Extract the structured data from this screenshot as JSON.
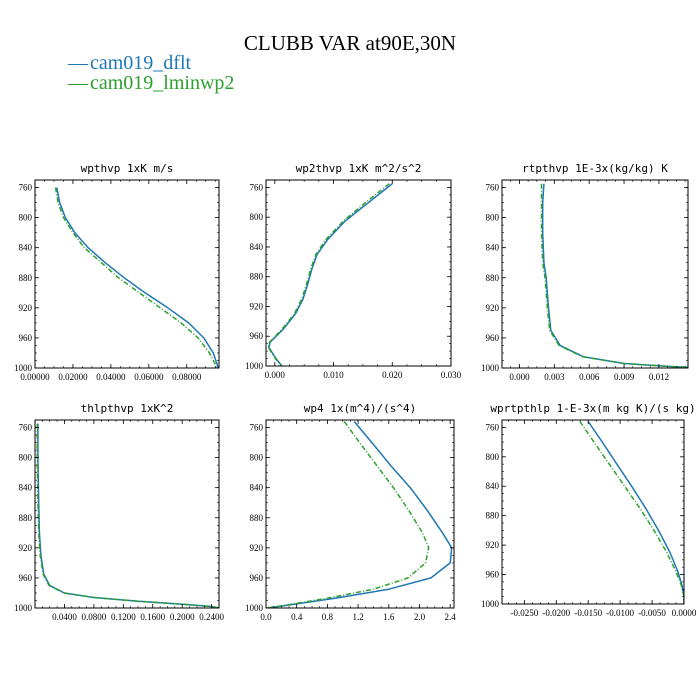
{
  "title": "CLUBB VAR at90E,30N",
  "legend": [
    {
      "label": "cam019_dflt",
      "color": "#1f77b4",
      "marker": "—"
    },
    {
      "label": "cam019_lminwp2",
      "color": "#2ca02c",
      "marker": "—"
    }
  ],
  "chart_data": [
    {
      "type": "line",
      "title": "wpthvp  1xK m/s",
      "xlim": [
        0,
        0.097
      ],
      "ylim": [
        750,
        1000
      ],
      "xticks": [
        0,
        0.02,
        0.04,
        0.06,
        0.08
      ],
      "xtick_labels": [
        "0.00000",
        "0.02000",
        "0.04000",
        "0.06000",
        "0.08000"
      ],
      "yticks": [
        760,
        800,
        840,
        880,
        920,
        960,
        1000
      ],
      "ytick_labels": [
        "760",
        "800",
        "840",
        "880",
        "920",
        "960",
        "1000"
      ],
      "series": [
        {
          "name": "cam019_dflt",
          "color": "#1f77b4",
          "dashed": false,
          "x": [
            0.0115,
            0.013,
            0.016,
            0.021,
            0.028,
            0.037,
            0.047,
            0.058,
            0.07,
            0.081,
            0.089,
            0.094,
            0.096,
            0.0965
          ],
          "y": [
            760,
            780,
            800,
            820,
            840,
            860,
            880,
            900,
            920,
            940,
            960,
            980,
            995,
            1000
          ]
        },
        {
          "name": "cam019_lminwp2",
          "color": "#2ca02c",
          "dashed": true,
          "x": [
            0.0108,
            0.0122,
            0.015,
            0.02,
            0.026,
            0.035,
            0.044,
            0.055,
            0.066,
            0.077,
            0.086,
            0.092,
            0.095,
            0.0955
          ],
          "y": [
            760,
            780,
            800,
            820,
            840,
            860,
            880,
            900,
            920,
            940,
            960,
            980,
            995,
            1000
          ]
        }
      ]
    },
    {
      "type": "line",
      "title": "wp2thvp  1xK m^2/s^2",
      "xlim": [
        -0.0015,
        0.03
      ],
      "ylim": [
        750,
        1000
      ],
      "xticks": [
        0,
        0.01,
        0.02,
        0.03
      ],
      "xtick_labels": [
        "0.000",
        "0.010",
        "0.020",
        "0.030"
      ],
      "yticks": [
        760,
        800,
        840,
        880,
        920,
        960,
        1000
      ],
      "ytick_labels": [
        "760",
        "800",
        "840",
        "880",
        "920",
        "960",
        "1000"
      ],
      "series": [
        {
          "name": "cam019_dflt",
          "color": "#1f77b4",
          "dashed": false,
          "x": [
            0.02,
            0.016,
            0.012,
            0.009,
            0.0072,
            0.0063,
            0.0056,
            0.0048,
            0.0035,
            0.0015,
            -0.0008,
            -0.001,
            0.0002,
            0.0012
          ],
          "y": [
            755,
            780,
            805,
            830,
            850,
            870,
            890,
            910,
            930,
            950,
            968,
            975,
            990,
            1000
          ]
        },
        {
          "name": "cam019_lminwp2",
          "color": "#2ca02c",
          "dashed": true,
          "x": [
            0.0195,
            0.0155,
            0.0117,
            0.0087,
            0.007,
            0.0061,
            0.0054,
            0.0046,
            0.0033,
            0.0013,
            -0.0009,
            -0.0011,
            0.0001,
            0.0011
          ],
          "y": [
            755,
            780,
            805,
            830,
            850,
            870,
            890,
            910,
            930,
            950,
            968,
            975,
            990,
            1000
          ]
        }
      ]
    },
    {
      "type": "line",
      "title": "rtpthvp  1E-3x(kg/kg) K",
      "xlim": [
        -0.0015,
        0.0145
      ],
      "ylim": [
        750,
        1000
      ],
      "xticks": [
        0,
        0.003,
        0.006,
        0.009,
        0.012
      ],
      "xtick_labels": [
        "0.000",
        "0.003",
        "0.006",
        "0.009",
        "0.012"
      ],
      "yticks": [
        760,
        800,
        840,
        880,
        920,
        960,
        1000
      ],
      "ytick_labels": [
        "760",
        "800",
        "840",
        "880",
        "920",
        "960",
        "1000"
      ],
      "series": [
        {
          "name": "cam019_dflt",
          "color": "#1f77b4",
          "dashed": false,
          "x": [
            0.0021,
            0.002,
            0.002,
            0.0021,
            0.0023,
            0.0024,
            0.0025,
            0.0027,
            0.0035,
            0.0055,
            0.009,
            0.013,
            0.0145
          ],
          "y": [
            755,
            780,
            820,
            860,
            880,
            900,
            920,
            950,
            970,
            985,
            994,
            998,
            999
          ]
        },
        {
          "name": "cam019_lminwp2",
          "color": "#2ca02c",
          "dashed": true,
          "x": [
            0.0019,
            0.0019,
            0.0019,
            0.002,
            0.0022,
            0.0023,
            0.0024,
            0.0026,
            0.0034,
            0.0054,
            0.009,
            0.013,
            0.0145
          ],
          "y": [
            755,
            780,
            820,
            860,
            880,
            900,
            920,
            950,
            970,
            985,
            994,
            998,
            999
          ]
        }
      ]
    },
    {
      "type": "line",
      "title": "thlpthvp  1xK^2",
      "xlim": [
        0,
        0.25
      ],
      "ylim": [
        750,
        1000
      ],
      "xticks": [
        0.04,
        0.08,
        0.12,
        0.16,
        0.2,
        0.24
      ],
      "xtick_labels": [
        "0.0400",
        "0.0800",
        "0.1200",
        "0.1600",
        "0.2000",
        "0.2400"
      ],
      "yticks": [
        760,
        800,
        840,
        880,
        920,
        960,
        1000
      ],
      "ytick_labels": [
        "760",
        "800",
        "840",
        "880",
        "920",
        "960",
        "1000"
      ],
      "series": [
        {
          "name": "cam019_dflt",
          "color": "#1f77b4",
          "dashed": false,
          "x": [
            0.004,
            0.004,
            0.005,
            0.006,
            0.008,
            0.012,
            0.02,
            0.04,
            0.08,
            0.14,
            0.2,
            0.24,
            0.25
          ],
          "y": [
            755,
            800,
            860,
            900,
            930,
            955,
            970,
            980,
            986,
            991,
            995,
            998,
            1000
          ]
        },
        {
          "name": "cam019_lminwp2",
          "color": "#2ca02c",
          "dashed": true,
          "x": [
            0.003,
            0.003,
            0.004,
            0.005,
            0.007,
            0.011,
            0.019,
            0.039,
            0.079,
            0.14,
            0.2,
            0.24,
            0.25
          ],
          "y": [
            755,
            800,
            860,
            900,
            930,
            955,
            970,
            980,
            986,
            991,
            995,
            998,
            1000
          ]
        }
      ]
    },
    {
      "type": "line",
      "title": "wp4  1x(m^4)/(s^4)",
      "xlim": [
        0,
        2.45
      ],
      "ylim": [
        750,
        1000
      ],
      "xticks": [
        0,
        0.4,
        0.8,
        1.2,
        1.6,
        2.0,
        2.4
      ],
      "xtick_labels": [
        "0.0",
        "0.4",
        "0.8",
        "1.2",
        "1.6",
        "2.0",
        "2.4"
      ],
      "yticks": [
        760,
        800,
        840,
        880,
        920,
        960,
        1000
      ],
      "ytick_labels": [
        "760",
        "800",
        "840",
        "880",
        "920",
        "960",
        "1000"
      ],
      "series": [
        {
          "name": "cam019_dflt",
          "color": "#1f77b4",
          "dashed": false,
          "x": [
            1.15,
            1.38,
            1.62,
            1.88,
            2.1,
            2.3,
            2.42,
            2.4,
            2.15,
            1.6,
            0.9,
            0.3,
            0.02
          ],
          "y": [
            752,
            780,
            810,
            840,
            870,
            900,
            920,
            940,
            960,
            975,
            987,
            996,
            1000
          ]
        },
        {
          "name": "cam019_lminwp2",
          "color": "#2ca02c",
          "dashed": true,
          "x": [
            1.02,
            1.22,
            1.44,
            1.66,
            1.86,
            2.04,
            2.12,
            2.08,
            1.85,
            1.4,
            0.8,
            0.27,
            0.02
          ],
          "y": [
            752,
            780,
            810,
            840,
            870,
            900,
            920,
            940,
            960,
            975,
            987,
            996,
            1000
          ]
        }
      ]
    },
    {
      "type": "line",
      "title": "wprtpthlp  1-E-3x(m kg K)/(s kg)",
      "xlim": [
        -0.0285,
        0
      ],
      "ylim": [
        750,
        1000
      ],
      "xticks": [
        -0.025,
        -0.02,
        -0.015,
        -0.01,
        -0.005,
        0
      ],
      "xtick_labels": [
        "-0.0250",
        "-0.0200",
        "-0.0150",
        "-0.0100",
        "-0.0050",
        "0.0000"
      ],
      "yticks": [
        760,
        800,
        840,
        880,
        920,
        960,
        1000
      ],
      "ytick_labels": [
        "760",
        "800",
        "840",
        "880",
        "920",
        "960",
        "1000"
      ],
      "series": [
        {
          "name": "cam019_dflt",
          "color": "#1f77b4",
          "dashed": false,
          "x": [
            -0.015,
            -0.0128,
            -0.0105,
            -0.0082,
            -0.006,
            -0.004,
            -0.0022,
            -0.001,
            -0.0003,
            0,
            0
          ],
          "y": [
            752,
            780,
            810,
            840,
            870,
            900,
            930,
            955,
            975,
            990,
            1000
          ]
        },
        {
          "name": "cam019_lminwp2",
          "color": "#2ca02c",
          "dashed": true,
          "x": [
            -0.0163,
            -0.0141,
            -0.0117,
            -0.0093,
            -0.0069,
            -0.0047,
            -0.0027,
            -0.0013,
            -0.0004,
            0,
            0
          ],
          "y": [
            752,
            780,
            810,
            840,
            870,
            900,
            930,
            955,
            975,
            990,
            1000
          ]
        }
      ]
    }
  ]
}
